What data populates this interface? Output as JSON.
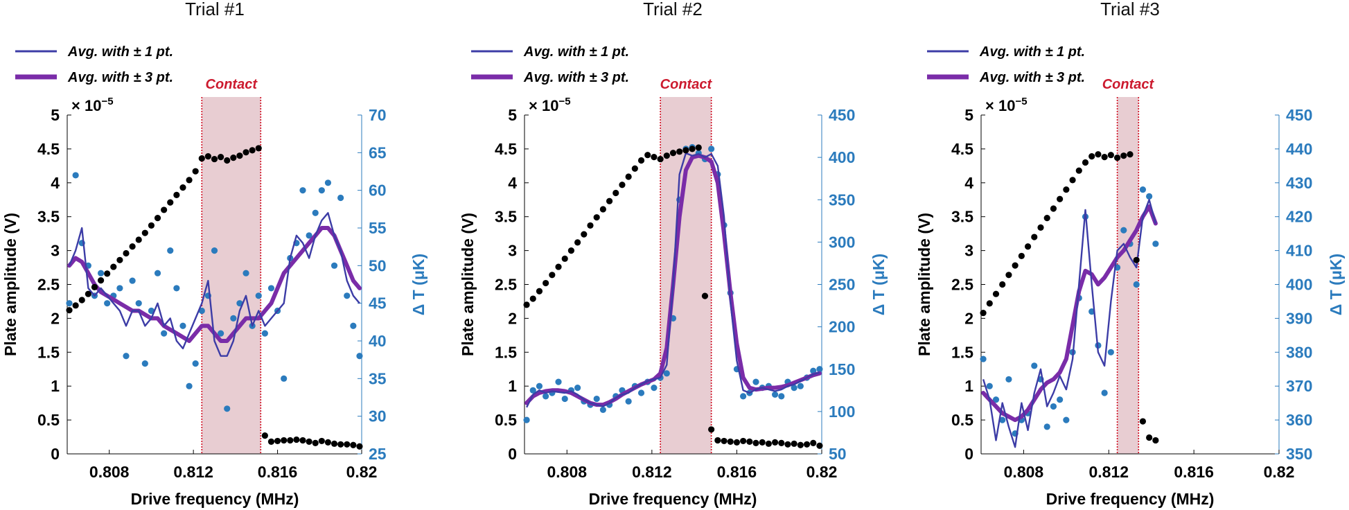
{
  "figure": {
    "xlabel": "Drive frequency (MHz)",
    "ylabel_left": "Plate amplitude (V)",
    "ylabel_right": "Δ T (μK)",
    "exponent_label": "× 10",
    "exponent_power": "−5",
    "legend": [
      "Avg. with ± 1 pt.",
      "Avg. with ± 3 pt."
    ],
    "contact_label": "Contact"
  },
  "colors": {
    "amplitude": "#000000",
    "temperature": "#2b7bbd",
    "avg1": "#3c3ca6",
    "avg3": "#7a2ca8",
    "contact_fill": "#e8cdd2",
    "contact_line": "#d10a1e",
    "axis_right": "#2b7bbd"
  },
  "chart_data": [
    {
      "type": "scatter",
      "title": "Trial #1",
      "xlabel": "Drive frequency (MHz)",
      "xlim": [
        0.806,
        0.82
      ],
      "xticks": [
        "0.808",
        "0.812",
        "0.816",
        "0.82"
      ],
      "ylim_left": [
        0,
        5
      ],
      "yticks_left": [
        "0",
        "0.5",
        "1",
        "1.5",
        "2",
        "2.5",
        "3",
        "3.5",
        "4",
        "4.5",
        "5"
      ],
      "ylim_right": [
        25,
        70
      ],
      "yticks_right": [
        "25",
        "30",
        "35",
        "40",
        "45",
        "50",
        "55",
        "60",
        "65",
        "70"
      ],
      "contact": [
        0.8124,
        0.8152
      ],
      "amplitude": {
        "x": [
          0.8061,
          0.8064,
          0.8067,
          0.807,
          0.8073,
          0.8076,
          0.8079,
          0.8082,
          0.8085,
          0.8088,
          0.8091,
          0.8094,
          0.8097,
          0.81,
          0.8103,
          0.8106,
          0.8109,
          0.8112,
          0.8115,
          0.8118,
          0.8121,
          0.8124,
          0.8127,
          0.813,
          0.8133,
          0.8136,
          0.8139,
          0.8142,
          0.8145,
          0.8148,
          0.8151,
          0.8154,
          0.8157,
          0.816,
          0.8163,
          0.8166,
          0.8169,
          0.8172,
          0.8175,
          0.8178,
          0.8181,
          0.8184,
          0.8187,
          0.819,
          0.8193,
          0.8196,
          0.8199
        ],
        "y": [
          2.12,
          2.19,
          2.27,
          2.36,
          2.46,
          2.56,
          2.66,
          2.76,
          2.86,
          2.96,
          3.06,
          3.16,
          3.26,
          3.37,
          3.48,
          3.6,
          3.71,
          3.82,
          3.93,
          4.04,
          4.17,
          4.36,
          4.39,
          4.35,
          4.38,
          4.33,
          4.37,
          4.4,
          4.45,
          4.48,
          4.51,
          0.27,
          0.18,
          0.19,
          0.2,
          0.2,
          0.21,
          0.2,
          0.18,
          0.16,
          0.19,
          0.17,
          0.15,
          0.14,
          0.14,
          0.13,
          0.11
        ]
      },
      "temperature": {
        "x": [
          0.8061,
          0.8064,
          0.8067,
          0.807,
          0.8073,
          0.8076,
          0.8079,
          0.8082,
          0.8085,
          0.8088,
          0.8091,
          0.8094,
          0.8097,
          0.81,
          0.8103,
          0.8106,
          0.8109,
          0.8112,
          0.8115,
          0.8118,
          0.8121,
          0.8124,
          0.8127,
          0.813,
          0.8133,
          0.8136,
          0.8139,
          0.8142,
          0.8145,
          0.8148,
          0.8151,
          0.8154,
          0.8157,
          0.816,
          0.8163,
          0.8166,
          0.8169,
          0.8172,
          0.8175,
          0.8178,
          0.8181,
          0.8184,
          0.8187,
          0.819,
          0.8193,
          0.8196,
          0.8199
        ],
        "y": [
          45,
          62,
          53,
          50,
          46,
          49,
          45,
          46,
          47,
          38,
          48,
          45,
          37,
          44,
          49,
          41,
          52,
          47,
          42,
          34,
          37,
          44,
          46,
          52,
          41,
          31,
          43,
          45,
          49,
          42,
          46,
          41,
          47,
          44,
          35,
          51,
          53,
          60,
          54,
          57,
          60,
          61,
          50,
          59,
          46,
          42,
          38
        ]
      },
      "avg1": [
        50,
        52,
        55,
        47,
        46,
        47,
        46,
        45,
        44,
        42,
        44,
        44,
        42,
        43,
        45,
        42,
        43,
        40,
        39,
        41,
        43,
        45,
        48,
        40,
        38,
        38,
        40,
        44,
        46,
        42,
        44,
        42,
        43,
        44,
        45,
        51,
        54,
        53,
        51,
        54,
        56,
        57,
        54,
        52,
        48,
        46,
        45
      ],
      "avg3": [
        50,
        51,
        50.5,
        49,
        47.5,
        46.5,
        46,
        45.5,
        45,
        44.5,
        44,
        44,
        43.5,
        43,
        43,
        42,
        41.5,
        41,
        40.5,
        40,
        41,
        42,
        42,
        41,
        40,
        40,
        41,
        42,
        43,
        43,
        43,
        44,
        45,
        47,
        49,
        50,
        51,
        52,
        53,
        54,
        55,
        55,
        54,
        52,
        50,
        48,
        47
      ]
    },
    {
      "type": "scatter",
      "title": "Trial #2",
      "xlabel": "Drive frequency (MHz)",
      "xlim": [
        0.806,
        0.82
      ],
      "xticks": [
        "0.808",
        "0.812",
        "0.816",
        "0.82"
      ],
      "ylim_left": [
        0,
        5
      ],
      "yticks_left": [
        "0",
        "0.5",
        "1",
        "1.5",
        "2",
        "2.5",
        "3",
        "3.5",
        "4",
        "4.5",
        "5"
      ],
      "ylim_right": [
        50,
        450
      ],
      "yticks_right": [
        "50",
        "100",
        "150",
        "200",
        "250",
        "300",
        "350",
        "400",
        "450"
      ],
      "contact": [
        0.8124,
        0.8148
      ],
      "amplitude": {
        "x": [
          0.8061,
          0.8064,
          0.8067,
          0.807,
          0.8073,
          0.8076,
          0.8079,
          0.8082,
          0.8085,
          0.8088,
          0.8091,
          0.8094,
          0.8097,
          0.81,
          0.8103,
          0.8106,
          0.8109,
          0.8112,
          0.8115,
          0.8118,
          0.8121,
          0.8124,
          0.8127,
          0.813,
          0.8133,
          0.8136,
          0.8139,
          0.8142,
          0.8145,
          0.8148,
          0.8151,
          0.8154,
          0.8157,
          0.816,
          0.8163,
          0.8166,
          0.8169,
          0.8172,
          0.8175,
          0.8178,
          0.8181,
          0.8184,
          0.8187,
          0.819,
          0.8193,
          0.8196,
          0.8199
        ],
        "y": [
          2.2,
          2.29,
          2.4,
          2.52,
          2.64,
          2.76,
          2.88,
          3.0,
          3.12,
          3.24,
          3.37,
          3.49,
          3.61,
          3.73,
          3.85,
          3.97,
          4.09,
          4.21,
          4.33,
          4.41,
          4.38,
          4.35,
          4.4,
          4.44,
          4.46,
          4.48,
          4.5,
          4.52,
          2.33,
          0.36,
          0.2,
          0.19,
          0.18,
          0.17,
          0.19,
          0.18,
          0.16,
          0.17,
          0.15,
          0.17,
          0.16,
          0.14,
          0.15,
          0.13,
          0.14,
          0.16,
          0.12
        ]
      },
      "temperature": {
        "x": [
          0.8061,
          0.8064,
          0.8067,
          0.807,
          0.8073,
          0.8076,
          0.8079,
          0.8082,
          0.8085,
          0.8088,
          0.8091,
          0.8094,
          0.8097,
          0.81,
          0.8103,
          0.8106,
          0.8109,
          0.8112,
          0.8115,
          0.8118,
          0.8121,
          0.8124,
          0.8127,
          0.813,
          0.8133,
          0.8136,
          0.8139,
          0.8142,
          0.8145,
          0.8148,
          0.8151,
          0.8154,
          0.8157,
          0.816,
          0.8163,
          0.8166,
          0.8169,
          0.8172,
          0.8175,
          0.8178,
          0.8181,
          0.8184,
          0.8187,
          0.819,
          0.8193,
          0.8196,
          0.8199
        ],
        "y": [
          90,
          125,
          130,
          118,
          122,
          135,
          115,
          125,
          128,
          112,
          108,
          115,
          102,
          108,
          118,
          125,
          112,
          130,
          122,
          135,
          128,
          140,
          145,
          210,
          350,
          410,
          412,
          405,
          398,
          410,
          380,
          320,
          240,
          150,
          118,
          122,
          135,
          128,
          130,
          120,
          118,
          135,
          128,
          130,
          140,
          148,
          150
        ]
      },
      "avg1": [
        105,
        120,
        125,
        122,
        124,
        123,
        122,
        124,
        120,
        114,
        110,
        108,
        106,
        110,
        116,
        120,
        122,
        128,
        132,
        136,
        138,
        140,
        155,
        250,
        380,
        405,
        402,
        404,
        400,
        404,
        390,
        330,
        230,
        160,
        125,
        122,
        126,
        128,
        126,
        124,
        126,
        130,
        132,
        136,
        140,
        144,
        146
      ],
      "avg3": [
        110,
        118,
        122,
        124,
        125,
        125,
        124,
        122,
        118,
        114,
        110,
        108,
        108,
        111,
        115,
        120,
        124,
        128,
        132,
        135,
        138,
        145,
        175,
        250,
        330,
        385,
        400,
        402,
        400,
        395,
        370,
        310,
        240,
        180,
        140,
        128,
        126,
        127,
        128,
        128,
        129,
        131,
        134,
        137,
        140,
        143,
        145
      ]
    },
    {
      "type": "scatter",
      "title": "Trial #3",
      "xlabel": "Drive frequency (MHz)",
      "xlim": [
        0.806,
        0.82
      ],
      "xticks": [
        "0.808",
        "0.812",
        "0.816",
        "0.82"
      ],
      "ylim_left": [
        0,
        5
      ],
      "yticks_left": [
        "0",
        "0.5",
        "1",
        "1.5",
        "2",
        "2.5",
        "3",
        "3.5",
        "4",
        "4.5",
        "5"
      ],
      "ylim_right": [
        350,
        450
      ],
      "yticks_right": [
        "350",
        "360",
        "370",
        "380",
        "390",
        "400",
        "410",
        "420",
        "430",
        "440",
        "450"
      ],
      "contact": [
        0.8124,
        0.8134
      ],
      "amplitude": {
        "x": [
          0.8061,
          0.8064,
          0.8067,
          0.807,
          0.8073,
          0.8076,
          0.8079,
          0.8082,
          0.8085,
          0.8088,
          0.8091,
          0.8094,
          0.8097,
          0.81,
          0.8103,
          0.8106,
          0.8109,
          0.8112,
          0.8115,
          0.8118,
          0.8121,
          0.8124,
          0.8127,
          0.813,
          0.8133,
          0.8136,
          0.8139,
          0.8142
        ],
        "y": [
          2.08,
          2.22,
          2.36,
          2.5,
          2.64,
          2.78,
          2.92,
          3.06,
          3.2,
          3.34,
          3.48,
          3.62,
          3.76,
          3.9,
          4.04,
          4.18,
          4.3,
          4.39,
          4.42,
          4.38,
          4.41,
          4.37,
          4.4,
          4.42,
          2.86,
          0.48,
          0.24,
          0.2
        ]
      },
      "temperature": {
        "x": [
          0.8061,
          0.8064,
          0.8067,
          0.807,
          0.8073,
          0.8076,
          0.8079,
          0.8082,
          0.8085,
          0.8088,
          0.8091,
          0.8094,
          0.8097,
          0.81,
          0.8103,
          0.8106,
          0.8109,
          0.8112,
          0.8115,
          0.8118,
          0.8121,
          0.8124,
          0.8127,
          0.813,
          0.8133,
          0.8136,
          0.8139,
          0.8142
        ],
        "y": [
          378,
          370,
          366,
          360,
          372,
          356,
          360,
          362,
          376,
          372,
          358,
          364,
          366,
          360,
          380,
          396,
          420,
          392,
          382,
          368,
          380,
          405,
          416,
          412,
          400,
          428,
          426,
          412
        ]
      },
      "avg1": [
        372,
        366,
        354,
        365,
        358,
        352,
        365,
        357,
        368,
        375,
        364,
        368,
        373,
        369,
        378,
        400,
        422,
        400,
        380,
        376,
        395,
        410,
        412,
        408,
        405,
        420,
        425,
        418
      ],
      "avg3": [
        368,
        366,
        364,
        362,
        361,
        360,
        361,
        363,
        366,
        369,
        371,
        372,
        374,
        378,
        388,
        398,
        404,
        403,
        400,
        402,
        405,
        408,
        410,
        413,
        416,
        420,
        423,
        418
      ]
    }
  ]
}
